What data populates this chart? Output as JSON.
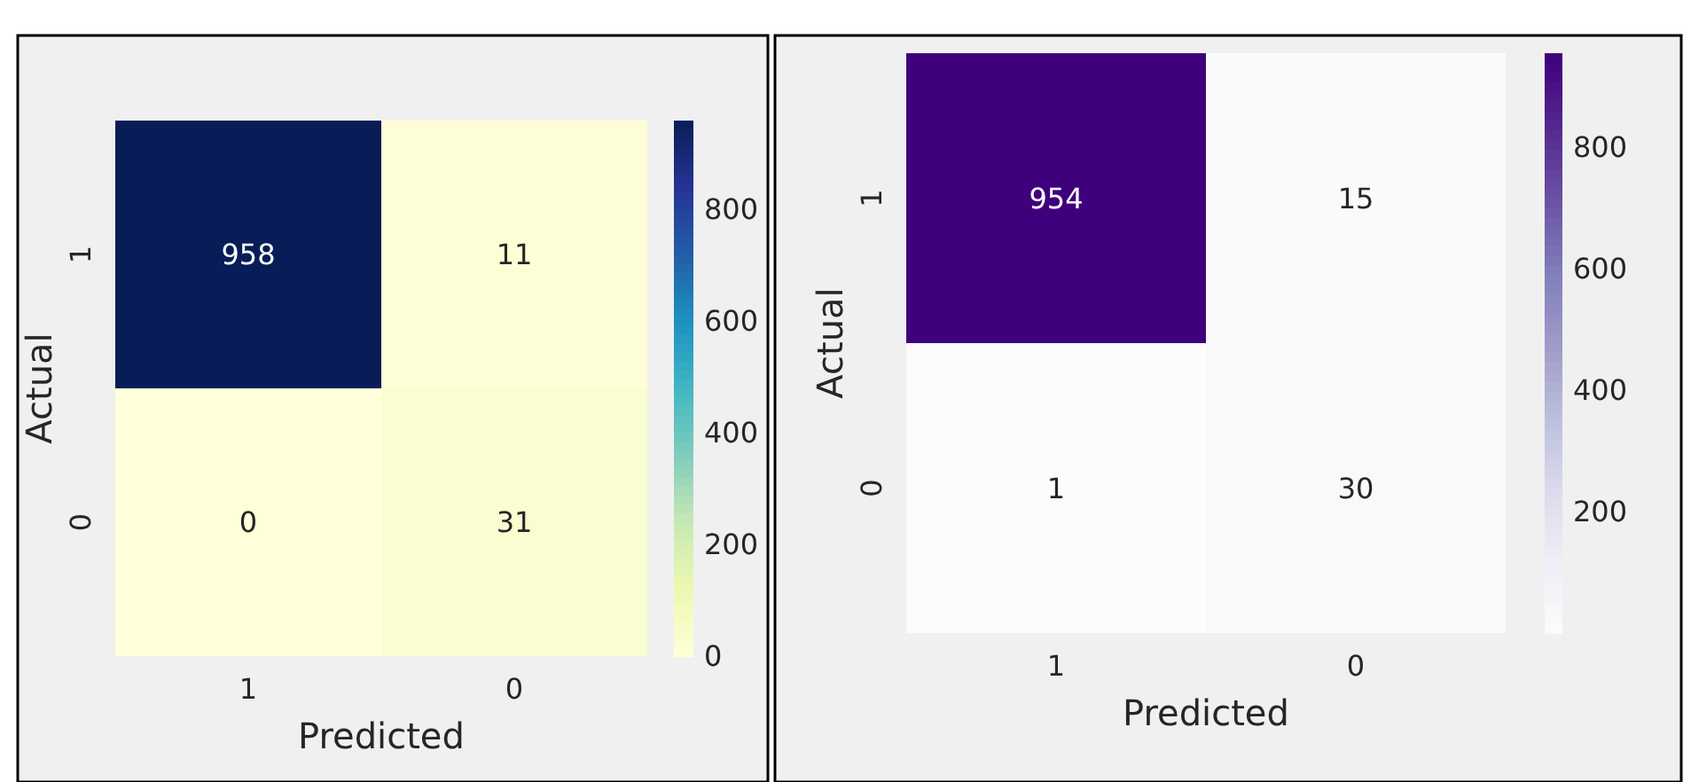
{
  "chart_data": [
    {
      "type": "heatmap",
      "xlabel": "Predicted",
      "ylabel": "Actual",
      "categories": [
        "1",
        "0"
      ],
      "y_categories": [
        "1",
        "0"
      ],
      "cells": [
        [
          958,
          11
        ],
        [
          0,
          31
        ]
      ],
      "data_labels": true,
      "clim": [
        0,
        958
      ],
      "cticks": [
        0,
        200,
        400,
        600,
        800
      ],
      "colors": [
        "#ffffd9",
        "#edf8b1",
        "#c7e9b4",
        "#7fcdbb",
        "#41b6c4",
        "#1d91c0",
        "#225ea8",
        "#253494",
        "#081d58"
      ]
    },
    {
      "type": "heatmap",
      "xlabel": "Predicted",
      "ylabel": "Actual",
      "categories": [
        "1",
        "0"
      ],
      "y_categories": [
        "1",
        "0"
      ],
      "cells": [
        [
          954,
          15
        ],
        [
          1,
          30
        ]
      ],
      "data_labels": true,
      "clim": [
        1,
        954
      ],
      "cticks": [
        200,
        400,
        600,
        800
      ],
      "colors": [
        "#fcfbfd",
        "#efedf5",
        "#dadaeb",
        "#bcbddc",
        "#9e9ac8",
        "#807dba",
        "#6a51a3",
        "#54278f",
        "#3f007d"
      ]
    }
  ]
}
